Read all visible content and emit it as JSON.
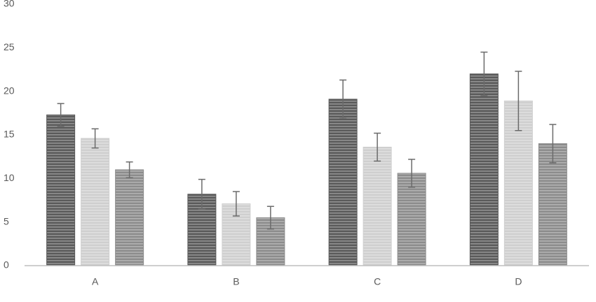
{
  "chart_data": {
    "type": "bar",
    "categories": [
      "A",
      "B",
      "C",
      "D"
    ],
    "series": [
      {
        "color": "#5a5a5a",
        "values": [
          17.3,
          8.2,
          19.1,
          22.0
        ],
        "errors": [
          1.3,
          1.7,
          2.2,
          2.5
        ]
      },
      {
        "color": "#cfcfcf",
        "values": [
          14.6,
          7.1,
          13.6,
          18.9
        ],
        "errors": [
          1.1,
          1.4,
          1.6,
          3.4
        ]
      },
      {
        "color": "#8c8c8c",
        "values": [
          11.0,
          5.5,
          10.6,
          14.0
        ],
        "errors": [
          0.9,
          1.3,
          1.6,
          2.2
        ]
      }
    ],
    "ylim": [
      0,
      30
    ],
    "yticks": [
      0,
      5,
      10,
      15,
      20,
      25,
      30
    ],
    "grid": false
  }
}
